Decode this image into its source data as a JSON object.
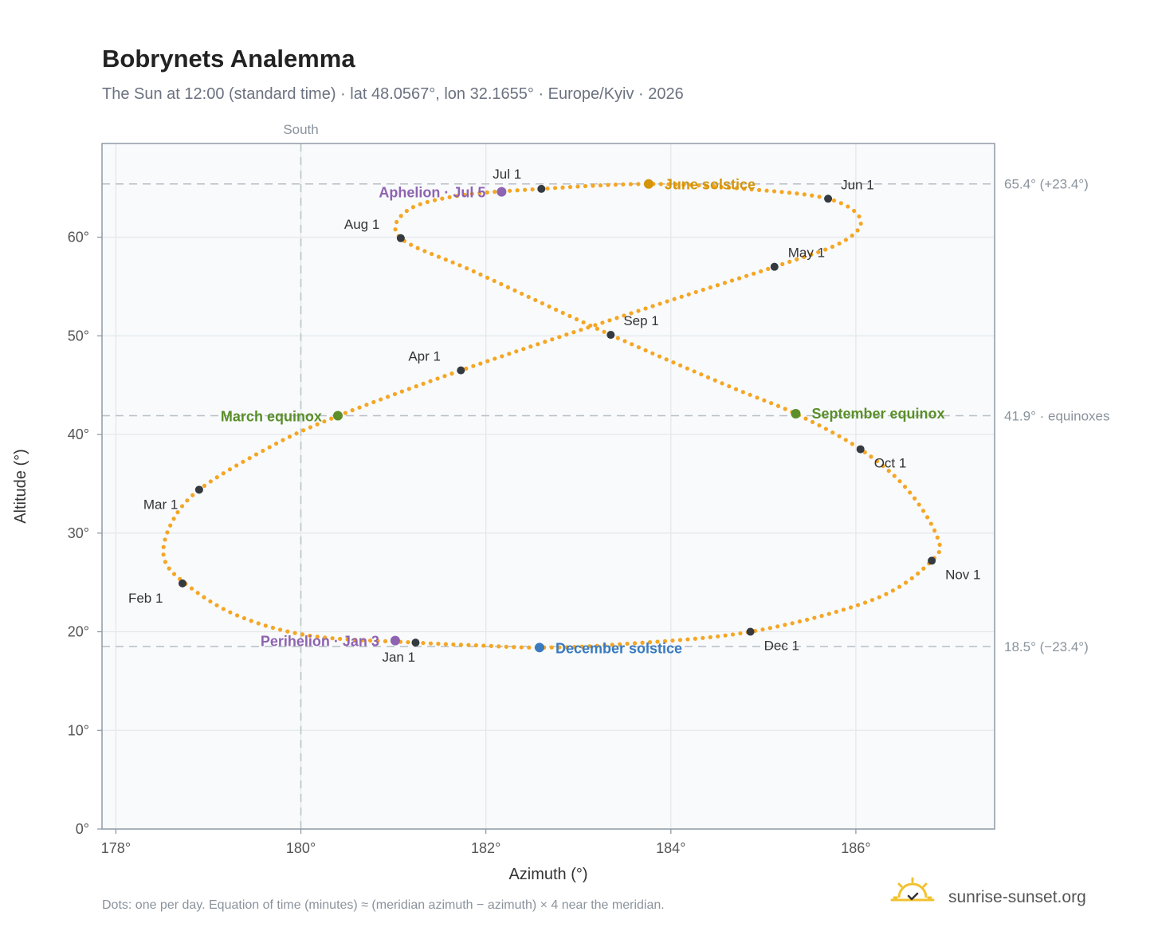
{
  "title": "Bobrynets Analemma",
  "subtitle": "The Sun at 12:00 (standard time) · lat 48.0567°, lon 32.1655° · Europe/Kyiv · 2026",
  "footnote": "Dots: one per day. Equation of time (minutes) ≈ (meridian azimuth − azimuth) × 4 near the meridian.",
  "brand": {
    "name": "sunrise-sunset.org",
    "icon": "sun-logo-icon"
  },
  "colors": {
    "curve": "#f5a623",
    "month_marker": "#343a40",
    "june_solstice": "#d4950b",
    "december_solstice": "#3a7bbf",
    "equinox": "#5a8f29",
    "aphelion_perihelion": "#8e63b0",
    "reference_line": "#b8bec5",
    "plot_bg": "#f8fafc",
    "plot_border": "#8f9aa6"
  },
  "chart_data": {
    "type": "scatter",
    "xlabel": "Azimuth (°)",
    "ylabel": "Altitude (°)",
    "xlim": [
      177.85,
      187.5
    ],
    "ylim": [
      0,
      69.5
    ],
    "xticks": [
      178,
      180,
      182,
      184,
      186
    ],
    "xtick_labels": [
      "178°",
      "180°",
      "182°",
      "184°",
      "186°"
    ],
    "yticks": [
      0,
      10,
      20,
      30,
      40,
      50,
      60
    ],
    "ytick_labels": [
      "0°",
      "10°",
      "20°",
      "30°",
      "40°",
      "50°",
      "60°"
    ],
    "grid": true,
    "meridian": {
      "x": 180,
      "label": "South"
    },
    "reference_lines": [
      {
        "y": 65.4,
        "label": "65.4° (+23.4°)"
      },
      {
        "y": 41.9,
        "label": "41.9° · equinoxes"
      },
      {
        "y": 18.5,
        "label": "18.5° (−23.4°)"
      }
    ],
    "series": [
      {
        "curve_knots": [
          [
            181.24,
            18.9
          ],
          [
            180.1,
            19.6
          ],
          [
            179.3,
            21.7
          ],
          [
            178.75,
            24.9
          ],
          [
            178.52,
            27.5
          ],
          [
            178.6,
            31.0
          ],
          [
            178.9,
            34.4
          ],
          [
            179.6,
            38.4
          ],
          [
            180.3,
            41.5
          ],
          [
            181.73,
            46.5
          ],
          [
            183.8,
            53.0
          ],
          [
            185.12,
            57.0
          ],
          [
            185.85,
            59.5
          ],
          [
            186.05,
            61.8
          ],
          [
            185.7,
            63.9
          ],
          [
            184.8,
            64.9
          ],
          [
            183.76,
            65.4
          ],
          [
            182.6,
            64.9
          ],
          [
            181.7,
            64.2
          ],
          [
            181.15,
            62.7
          ],
          [
            181.08,
            59.9
          ],
          [
            181.9,
            56.4
          ],
          [
            183.35,
            50.1
          ],
          [
            184.6,
            45.0
          ],
          [
            185.35,
            42.1
          ],
          [
            186.05,
            38.5
          ],
          [
            186.55,
            34.5
          ],
          [
            186.88,
            29.6
          ],
          [
            186.82,
            27.2
          ],
          [
            186.2,
            23.3
          ],
          [
            184.86,
            20.0
          ],
          [
            183.4,
            18.7
          ],
          [
            182.58,
            18.4
          ],
          [
            181.95,
            18.6
          ],
          [
            181.24,
            18.9
          ]
        ]
      }
    ],
    "month_markers": [
      {
        "label": "Jan 1",
        "x": 181.24,
        "y": 18.9
      },
      {
        "label": "Feb 1",
        "x": 178.72,
        "y": 24.9
      },
      {
        "label": "Mar 1",
        "x": 178.9,
        "y": 34.4
      },
      {
        "label": "Apr 1",
        "x": 181.73,
        "y": 46.5
      },
      {
        "label": "May 1",
        "x": 185.12,
        "y": 57.0
      },
      {
        "label": "Jun 1",
        "x": 185.7,
        "y": 63.9
      },
      {
        "label": "Jul 1",
        "x": 182.6,
        "y": 64.9
      },
      {
        "label": "Aug 1",
        "x": 181.08,
        "y": 59.9
      },
      {
        "label": "Sep 1",
        "x": 183.35,
        "y": 50.1
      },
      {
        "label": "Oct 1",
        "x": 186.05,
        "y": 38.5
      },
      {
        "label": "Nov 1",
        "x": 186.82,
        "y": 27.2
      },
      {
        "label": "Dec 1",
        "x": 184.86,
        "y": 20.0
      }
    ],
    "events": [
      {
        "label": "June solstice",
        "x": 183.76,
        "y": 65.4,
        "color_key": "june_solstice"
      },
      {
        "label": "December solstice",
        "x": 182.58,
        "y": 18.4,
        "color_key": "december_solstice"
      },
      {
        "label": "March equinox",
        "x": 180.4,
        "y": 41.9,
        "color_key": "equinox"
      },
      {
        "label": "September equinox",
        "x": 185.35,
        "y": 42.1,
        "color_key": "equinox"
      },
      {
        "label": "Aphelion · Jul 5",
        "x": 182.17,
        "y": 64.6,
        "color_key": "aphelion_perihelion"
      },
      {
        "label": "Perihelion · Jan 3",
        "x": 181.02,
        "y": 19.1,
        "color_key": "aphelion_perihelion"
      }
    ]
  }
}
